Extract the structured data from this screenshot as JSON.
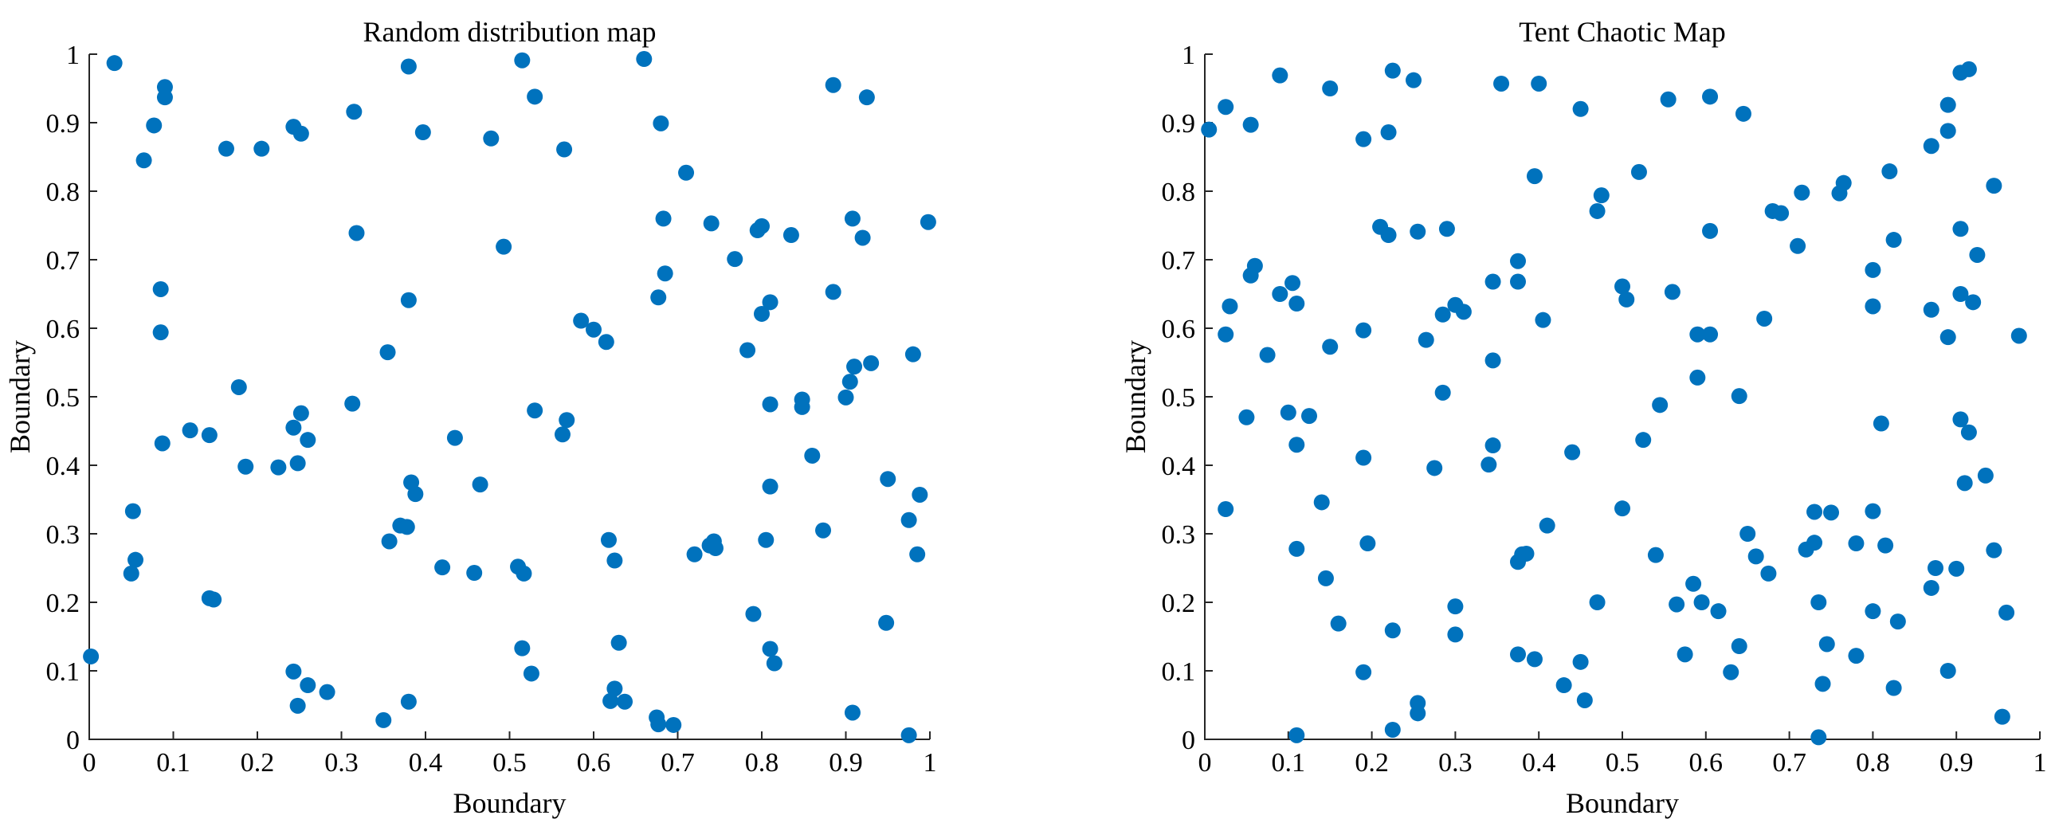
{
  "chart_data": [
    {
      "type": "scatter",
      "title": "Random distribution map",
      "xlabel": "Boundary",
      "ylabel": "Boundary",
      "xlim": [
        0,
        1
      ],
      "ylim": [
        0,
        1
      ],
      "xticks": [
        "0",
        "0.1",
        "0.2",
        "0.3",
        "0.4",
        "0.5",
        "0.6",
        "0.7",
        "0.8",
        "0.9",
        "1"
      ],
      "yticks": [
        "0",
        "0.1",
        "0.2",
        "0.3",
        "0.4",
        "0.5",
        "0.6",
        "0.7",
        "0.8",
        "0.9",
        "1"
      ],
      "grid": false,
      "marker_color": "#0072BD",
      "points": [
        [
          0.03,
          0.987
        ],
        [
          0.09,
          0.952
        ],
        [
          0.09,
          0.937
        ],
        [
          0.077,
          0.896
        ],
        [
          0.065,
          0.845
        ],
        [
          0.163,
          0.862
        ],
        [
          0.205,
          0.862
        ],
        [
          0.243,
          0.894
        ],
        [
          0.252,
          0.884
        ],
        [
          0.315,
          0.916
        ],
        [
          0.38,
          0.982
        ],
        [
          0.397,
          0.886
        ],
        [
          0.478,
          0.877
        ],
        [
          0.515,
          0.991
        ],
        [
          0.53,
          0.938
        ],
        [
          0.565,
          0.861
        ],
        [
          0.66,
          0.993
        ],
        [
          0.68,
          0.899
        ],
        [
          0.71,
          0.827
        ],
        [
          0.885,
          0.955
        ],
        [
          0.925,
          0.937
        ],
        [
          0.318,
          0.739
        ],
        [
          0.493,
          0.719
        ],
        [
          0.683,
          0.76
        ],
        [
          0.74,
          0.753
        ],
        [
          0.685,
          0.68
        ],
        [
          0.768,
          0.701
        ],
        [
          0.795,
          0.743
        ],
        [
          0.8,
          0.749
        ],
        [
          0.835,
          0.736
        ],
        [
          0.908,
          0.76
        ],
        [
          0.92,
          0.732
        ],
        [
          0.998,
          0.755
        ],
        [
          0.085,
          0.657
        ],
        [
          0.085,
          0.594
        ],
        [
          0.38,
          0.641
        ],
        [
          0.355,
          0.565
        ],
        [
          0.585,
          0.611
        ],
        [
          0.6,
          0.598
        ],
        [
          0.615,
          0.58
        ],
        [
          0.677,
          0.645
        ],
        [
          0.8,
          0.621
        ],
        [
          0.81,
          0.638
        ],
        [
          0.885,
          0.653
        ],
        [
          0.783,
          0.568
        ],
        [
          0.98,
          0.562
        ],
        [
          0.93,
          0.549
        ],
        [
          0.91,
          0.544
        ],
        [
          0.905,
          0.522
        ],
        [
          0.9,
          0.499
        ],
        [
          0.848,
          0.496
        ],
        [
          0.848,
          0.485
        ],
        [
          0.81,
          0.489
        ],
        [
          0.178,
          0.514
        ],
        [
          0.12,
          0.451
        ],
        [
          0.143,
          0.444
        ],
        [
          0.087,
          0.432
        ],
        [
          0.186,
          0.398
        ],
        [
          0.225,
          0.397
        ],
        [
          0.248,
          0.403
        ],
        [
          0.243,
          0.455
        ],
        [
          0.252,
          0.476
        ],
        [
          0.26,
          0.437
        ],
        [
          0.313,
          0.49
        ],
        [
          0.435,
          0.44
        ],
        [
          0.53,
          0.48
        ],
        [
          0.563,
          0.445
        ],
        [
          0.568,
          0.466
        ],
        [
          0.86,
          0.414
        ],
        [
          0.383,
          0.375
        ],
        [
          0.388,
          0.358
        ],
        [
          0.465,
          0.372
        ],
        [
          0.81,
          0.369
        ],
        [
          0.95,
          0.38
        ],
        [
          0.988,
          0.357
        ],
        [
          0.052,
          0.333
        ],
        [
          0.055,
          0.262
        ],
        [
          0.05,
          0.242
        ],
        [
          0.37,
          0.312
        ],
        [
          0.378,
          0.31
        ],
        [
          0.357,
          0.289
        ],
        [
          0.42,
          0.251
        ],
        [
          0.458,
          0.243
        ],
        [
          0.51,
          0.252
        ],
        [
          0.517,
          0.242
        ],
        [
          0.618,
          0.291
        ],
        [
          0.625,
          0.261
        ],
        [
          0.72,
          0.27
        ],
        [
          0.738,
          0.283
        ],
        [
          0.743,
          0.289
        ],
        [
          0.745,
          0.279
        ],
        [
          0.805,
          0.291
        ],
        [
          0.873,
          0.305
        ],
        [
          0.975,
          0.32
        ],
        [
          0.985,
          0.27
        ],
        [
          0.143,
          0.206
        ],
        [
          0.148,
          0.204
        ],
        [
          0.79,
          0.183
        ],
        [
          0.948,
          0.17
        ],
        [
          0.63,
          0.141
        ],
        [
          0.515,
          0.133
        ],
        [
          0.81,
          0.132
        ],
        [
          0.815,
          0.111
        ],
        [
          0.243,
          0.099
        ],
        [
          0.26,
          0.079
        ],
        [
          0.283,
          0.069
        ],
        [
          0.526,
          0.096
        ],
        [
          0.625,
          0.074
        ],
        [
          0.62,
          0.056
        ],
        [
          0.637,
          0.055
        ],
        [
          0.248,
          0.049
        ],
        [
          0.38,
          0.055
        ],
        [
          0.35,
          0.028
        ],
        [
          0.675,
          0.032
        ],
        [
          0.677,
          0.022
        ],
        [
          0.695,
          0.021
        ],
        [
          0.908,
          0.039
        ],
        [
          0.975,
          0.006
        ],
        [
          0.002,
          0.121
        ]
      ]
    },
    {
      "type": "scatter",
      "title": "Tent  Chaotic Map",
      "xlabel": "Boundary",
      "ylabel": "Boundary",
      "xlim": [
        0,
        1
      ],
      "ylim": [
        0,
        1
      ],
      "xticks": [
        "0",
        "0.1",
        "0.2",
        "0.3",
        "0.4",
        "0.5",
        "0.6",
        "0.7",
        "0.8",
        "0.9",
        "1"
      ],
      "yticks": [
        "0",
        "0.1",
        "0.2",
        "0.3",
        "0.4",
        "0.5",
        "0.6",
        "0.7",
        "0.8",
        "0.9",
        "1"
      ],
      "grid": false,
      "marker_color": "#0072BD",
      "points": [
        [
          0.005,
          0.89
        ],
        [
          0.025,
          0.923
        ],
        [
          0.055,
          0.897
        ],
        [
          0.09,
          0.969
        ],
        [
          0.15,
          0.95
        ],
        [
          0.22,
          0.886
        ],
        [
          0.225,
          0.976
        ],
        [
          0.25,
          0.962
        ],
        [
          0.19,
          0.876
        ],
        [
          0.355,
          0.957
        ],
        [
          0.4,
          0.957
        ],
        [
          0.45,
          0.92
        ],
        [
          0.555,
          0.934
        ],
        [
          0.605,
          0.938
        ],
        [
          0.645,
          0.913
        ],
        [
          0.395,
          0.822
        ],
        [
          0.475,
          0.794
        ],
        [
          0.47,
          0.771
        ],
        [
          0.52,
          0.828
        ],
        [
          0.68,
          0.771
        ],
        [
          0.69,
          0.768
        ],
        [
          0.715,
          0.798
        ],
        [
          0.76,
          0.797
        ],
        [
          0.765,
          0.812
        ],
        [
          0.82,
          0.829
        ],
        [
          0.87,
          0.866
        ],
        [
          0.89,
          0.926
        ],
        [
          0.89,
          0.888
        ],
        [
          0.905,
          0.973
        ],
        [
          0.915,
          0.978
        ],
        [
          0.945,
          0.808
        ],
        [
          0.905,
          0.745
        ],
        [
          0.925,
          0.707
        ],
        [
          0.21,
          0.748
        ],
        [
          0.22,
          0.736
        ],
        [
          0.255,
          0.741
        ],
        [
          0.29,
          0.745
        ],
        [
          0.375,
          0.698
        ],
        [
          0.605,
          0.742
        ],
        [
          0.71,
          0.72
        ],
        [
          0.825,
          0.729
        ],
        [
          0.06,
          0.691
        ],
        [
          0.055,
          0.677
        ],
        [
          0.03,
          0.632
        ],
        [
          0.025,
          0.591
        ],
        [
          0.075,
          0.561
        ],
        [
          0.09,
          0.65
        ],
        [
          0.105,
          0.666
        ],
        [
          0.11,
          0.636
        ],
        [
          0.15,
          0.573
        ],
        [
          0.19,
          0.597
        ],
        [
          0.265,
          0.583
        ],
        [
          0.285,
          0.62
        ],
        [
          0.3,
          0.634
        ],
        [
          0.31,
          0.624
        ],
        [
          0.345,
          0.668
        ],
        [
          0.375,
          0.668
        ],
        [
          0.345,
          0.553
        ],
        [
          0.405,
          0.612
        ],
        [
          0.5,
          0.661
        ],
        [
          0.505,
          0.642
        ],
        [
          0.56,
          0.653
        ],
        [
          0.59,
          0.591
        ],
        [
          0.605,
          0.591
        ],
        [
          0.59,
          0.528
        ],
        [
          0.67,
          0.614
        ],
        [
          0.8,
          0.685
        ],
        [
          0.8,
          0.632
        ],
        [
          0.87,
          0.627
        ],
        [
          0.89,
          0.587
        ],
        [
          0.905,
          0.65
        ],
        [
          0.92,
          0.638
        ],
        [
          0.975,
          0.589
        ],
        [
          0.05,
          0.47
        ],
        [
          0.1,
          0.477
        ],
        [
          0.11,
          0.43
        ],
        [
          0.125,
          0.472
        ],
        [
          0.285,
          0.506
        ],
        [
          0.345,
          0.429
        ],
        [
          0.44,
          0.419
        ],
        [
          0.525,
          0.437
        ],
        [
          0.545,
          0.488
        ],
        [
          0.64,
          0.501
        ],
        [
          0.81,
          0.461
        ],
        [
          0.905,
          0.467
        ],
        [
          0.915,
          0.448
        ],
        [
          0.19,
          0.411
        ],
        [
          0.275,
          0.396
        ],
        [
          0.34,
          0.401
        ],
        [
          0.025,
          0.336
        ],
        [
          0.14,
          0.346
        ],
        [
          0.41,
          0.312
        ],
        [
          0.5,
          0.337
        ],
        [
          0.73,
          0.332
        ],
        [
          0.75,
          0.331
        ],
        [
          0.8,
          0.333
        ],
        [
          0.91,
          0.374
        ],
        [
          0.935,
          0.385
        ],
        [
          0.11,
          0.278
        ],
        [
          0.195,
          0.286
        ],
        [
          0.38,
          0.27
        ],
        [
          0.385,
          0.271
        ],
        [
          0.375,
          0.259
        ],
        [
          0.54,
          0.269
        ],
        [
          0.65,
          0.3
        ],
        [
          0.66,
          0.267
        ],
        [
          0.675,
          0.242
        ],
        [
          0.72,
          0.277
        ],
        [
          0.73,
          0.287
        ],
        [
          0.78,
          0.286
        ],
        [
          0.815,
          0.283
        ],
        [
          0.875,
          0.25
        ],
        [
          0.9,
          0.249
        ],
        [
          0.945,
          0.276
        ],
        [
          0.145,
          0.235
        ],
        [
          0.16,
          0.169
        ],
        [
          0.3,
          0.194
        ],
        [
          0.47,
          0.2
        ],
        [
          0.565,
          0.197
        ],
        [
          0.585,
          0.227
        ],
        [
          0.595,
          0.2
        ],
        [
          0.615,
          0.187
        ],
        [
          0.735,
          0.2
        ],
        [
          0.8,
          0.187
        ],
        [
          0.83,
          0.172
        ],
        [
          0.87,
          0.221
        ],
        [
          0.96,
          0.185
        ],
        [
          0.225,
          0.159
        ],
        [
          0.3,
          0.153
        ],
        [
          0.375,
          0.124
        ],
        [
          0.395,
          0.117
        ],
        [
          0.45,
          0.113
        ],
        [
          0.575,
          0.124
        ],
        [
          0.64,
          0.136
        ],
        [
          0.745,
          0.139
        ],
        [
          0.78,
          0.122
        ],
        [
          0.19,
          0.098
        ],
        [
          0.43,
          0.079
        ],
        [
          0.455,
          0.057
        ],
        [
          0.63,
          0.098
        ],
        [
          0.74,
          0.081
        ],
        [
          0.825,
          0.075
        ],
        [
          0.89,
          0.1
        ],
        [
          0.255,
          0.053
        ],
        [
          0.255,
          0.038
        ],
        [
          0.225,
          0.014
        ],
        [
          0.11,
          0.006
        ],
        [
          0.735,
          0.003
        ],
        [
          0.955,
          0.033
        ]
      ]
    }
  ]
}
